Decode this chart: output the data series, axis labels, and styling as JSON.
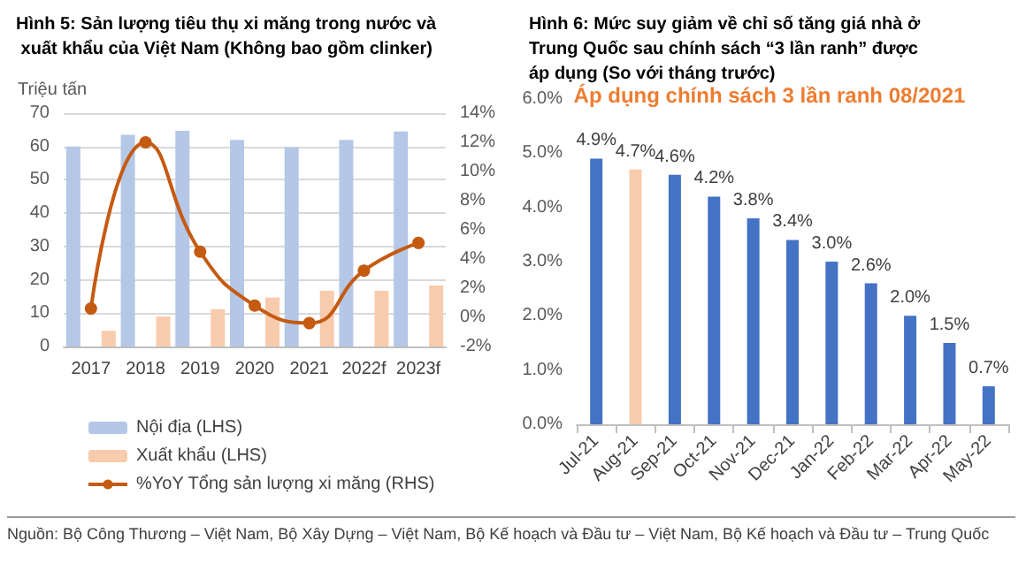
{
  "chart_data": [
    {
      "type": "bar",
      "title": "Hình 5: Sản lượng tiêu thụ xi măng trong nước và xuất khẩu của Việt Nam (Không bao gồm clinker)",
      "ylabel": "Triệu tấn",
      "categories": [
        "2017",
        "2018",
        "2019",
        "2020",
        "2021",
        "2022f",
        "2023f"
      ],
      "series": [
        {
          "name": "Nội địa (LHS)",
          "color": "#b4c7e7",
          "values": [
            60,
            63.5,
            64.7,
            62,
            59.7,
            62,
            64.5
          ]
        },
        {
          "name": "Xuất khẩu (LHS)",
          "color": "#f8cbad",
          "values": [
            4.7,
            9,
            11.2,
            14.7,
            16.7,
            16.7,
            18.3
          ]
        },
        {
          "name": "%YoY Tổng sản lượng xi măng (RHS)",
          "type": "line",
          "axis": "y2",
          "color": "#c55a11",
          "values": [
            0.6,
            12.0,
            4.5,
            0.8,
            -0.4,
            3.2,
            5.1
          ]
        }
      ],
      "ylim": [
        0,
        70
      ],
      "yticks": [
        0,
        10,
        20,
        30,
        40,
        50,
        60,
        70
      ],
      "y2lim": [
        -2,
        14
      ],
      "y2ticks": [
        {
          "value": -2,
          "label": "-2%"
        },
        {
          "value": 0,
          "label": "0%"
        },
        {
          "value": 2,
          "label": "2%"
        },
        {
          "value": 4,
          "label": "4%"
        },
        {
          "value": 6,
          "label": "6%"
        },
        {
          "value": 8,
          "label": "8%"
        },
        {
          "value": 10,
          "label": "10%"
        },
        {
          "value": 12,
          "label": "12%"
        },
        {
          "value": 14,
          "label": "14%"
        }
      ],
      "grid": "y",
      "legend": "bottom",
      "marker": "circle",
      "annotations": [
        "Nguồn: Bộ Công Thương – Việt Nam, Bộ Xây Dựng – Việt Nam, Bộ Kế hoạch và Đầu tư – Việt Nam, Bộ Kế hoạch và Đầu tư – Trung Quốc"
      ]
    },
    {
      "type": "bar",
      "title": "Hình 6: Mức suy giảm về chỉ số tăng giá nhà ở Trung Quốc sau chính sách “3 lần ranh” được áp dụng (So với tháng trước)",
      "categories": [
        "Jul-21",
        "Aug-21",
        "Sep-21",
        "Oct-21",
        "Nov-21",
        "Dec-21",
        "Jan-22",
        "Feb-22",
        "Mar-22",
        "Apr-22",
        "May-22"
      ],
      "values": [
        4.9,
        4.7,
        4.6,
        4.2,
        3.8,
        3.4,
        3.0,
        2.6,
        2.0,
        1.5,
        0.7
      ],
      "colors": [
        "#4472c4",
        "#f8cbad",
        "#4472c4",
        "#4472c4",
        "#4472c4",
        "#4472c4",
        "#4472c4",
        "#4472c4",
        "#4472c4",
        "#4472c4",
        "#4472c4"
      ],
      "value_labels": [
        "4.9%",
        "4.7%",
        "4.6%",
        "4.2%",
        "3.8%",
        "3.4%",
        "3.0%",
        "2.6%",
        "2.0%",
        "1.5%",
        "0.7%"
      ],
      "ylim": [
        0,
        6
      ],
      "yticks": [
        {
          "value": 0,
          "label": "0.0%"
        },
        {
          "value": 1,
          "label": "1.0%"
        },
        {
          "value": 2,
          "label": "2.0%"
        },
        {
          "value": 3,
          "label": "3.0%"
        },
        {
          "value": 4,
          "label": "4.0%"
        },
        {
          "value": 5,
          "label": "5.0%"
        },
        {
          "value": 6,
          "label": "6.0%"
        }
      ],
      "annotations": [
        "Áp dụng chính sách 3 lần ranh 08/2021"
      ]
    }
  ]
}
